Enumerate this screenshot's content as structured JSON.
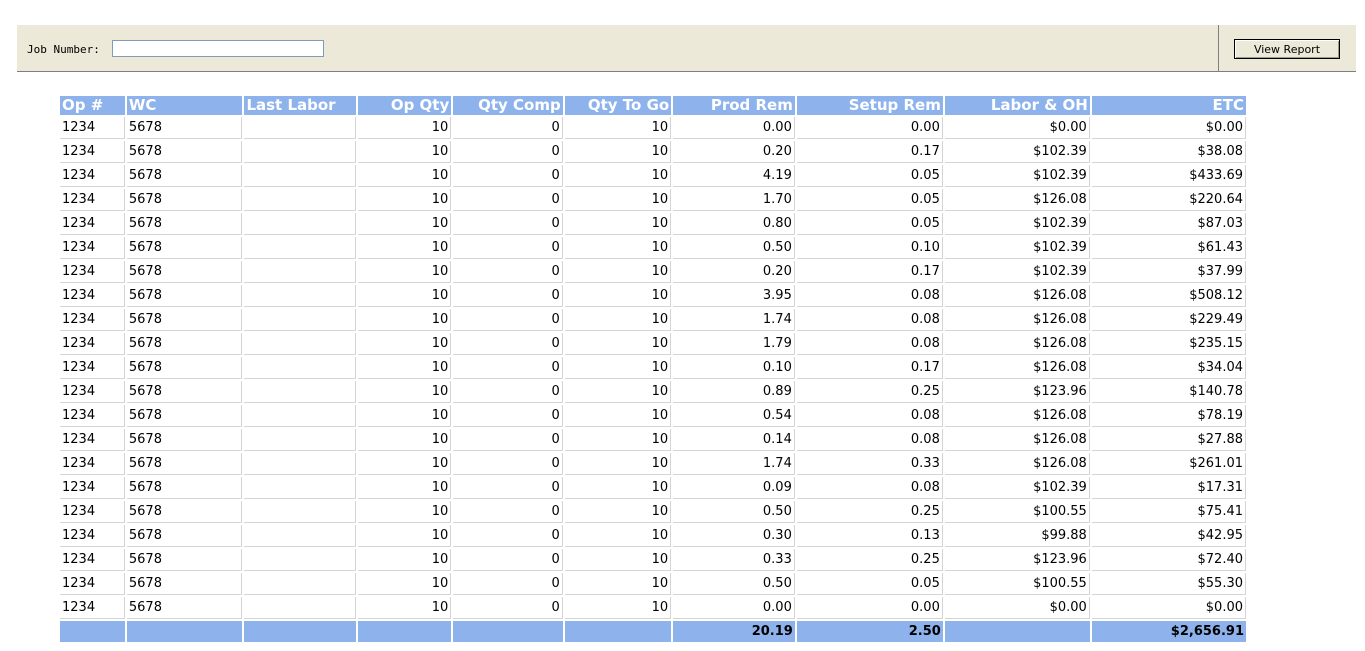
{
  "params": {
    "job_number_label": "Job Number:",
    "job_number_value": "",
    "view_report_label": "View Report"
  },
  "table": {
    "headers": [
      "Op #",
      "WC",
      "Last Labor",
      "Op Qty",
      "Qty Comp",
      "Qty To Go",
      "Prod Rem",
      "Setup Rem",
      "Labor & OH",
      "ETC"
    ],
    "header_color": "#8eb3ec",
    "rows": [
      [
        "1234",
        "5678",
        "",
        "10",
        "0",
        "10",
        "0.00",
        "0.00",
        "$0.00",
        "$0.00"
      ],
      [
        "1234",
        "5678",
        "",
        "10",
        "0",
        "10",
        "0.20",
        "0.17",
        "$102.39",
        "$38.08"
      ],
      [
        "1234",
        "5678",
        "",
        "10",
        "0",
        "10",
        "4.19",
        "0.05",
        "$102.39",
        "$433.69"
      ],
      [
        "1234",
        "5678",
        "",
        "10",
        "0",
        "10",
        "1.70",
        "0.05",
        "$126.08",
        "$220.64"
      ],
      [
        "1234",
        "5678",
        "",
        "10",
        "0",
        "10",
        "0.80",
        "0.05",
        "$102.39",
        "$87.03"
      ],
      [
        "1234",
        "5678",
        "",
        "10",
        "0",
        "10",
        "0.50",
        "0.10",
        "$102.39",
        "$61.43"
      ],
      [
        "1234",
        "5678",
        "",
        "10",
        "0",
        "10",
        "0.20",
        "0.17",
        "$102.39",
        "$37.99"
      ],
      [
        "1234",
        "5678",
        "",
        "10",
        "0",
        "10",
        "3.95",
        "0.08",
        "$126.08",
        "$508.12"
      ],
      [
        "1234",
        "5678",
        "",
        "10",
        "0",
        "10",
        "1.74",
        "0.08",
        "$126.08",
        "$229.49"
      ],
      [
        "1234",
        "5678",
        "",
        "10",
        "0",
        "10",
        "1.79",
        "0.08",
        "$126.08",
        "$235.15"
      ],
      [
        "1234",
        "5678",
        "",
        "10",
        "0",
        "10",
        "0.10",
        "0.17",
        "$126.08",
        "$34.04"
      ],
      [
        "1234",
        "5678",
        "",
        "10",
        "0",
        "10",
        "0.89",
        "0.25",
        "$123.96",
        "$140.78"
      ],
      [
        "1234",
        "5678",
        "",
        "10",
        "0",
        "10",
        "0.54",
        "0.08",
        "$126.08",
        "$78.19"
      ],
      [
        "1234",
        "5678",
        "",
        "10",
        "0",
        "10",
        "0.14",
        "0.08",
        "$126.08",
        "$27.88"
      ],
      [
        "1234",
        "5678",
        "",
        "10",
        "0",
        "10",
        "1.74",
        "0.33",
        "$126.08",
        "$261.01"
      ],
      [
        "1234",
        "5678",
        "",
        "10",
        "0",
        "10",
        "0.09",
        "0.08",
        "$102.39",
        "$17.31"
      ],
      [
        "1234",
        "5678",
        "",
        "10",
        "0",
        "10",
        "0.50",
        "0.25",
        "$100.55",
        "$75.41"
      ],
      [
        "1234",
        "5678",
        "",
        "10",
        "0",
        "10",
        "0.30",
        "0.13",
        "$99.88",
        "$42.95"
      ],
      [
        "1234",
        "5678",
        "",
        "10",
        "0",
        "10",
        "0.33",
        "0.25",
        "$123.96",
        "$72.40"
      ],
      [
        "1234",
        "5678",
        "",
        "10",
        "0",
        "10",
        "0.50",
        "0.05",
        "$100.55",
        "$55.30"
      ],
      [
        "1234",
        "5678",
        "",
        "10",
        "0",
        "10",
        "0.00",
        "0.00",
        "$0.00",
        "$0.00"
      ]
    ],
    "totals": [
      "",
      "",
      "",
      "",
      "",
      "",
      "20.19",
      "2.50",
      "",
      "$2,656.91"
    ]
  }
}
